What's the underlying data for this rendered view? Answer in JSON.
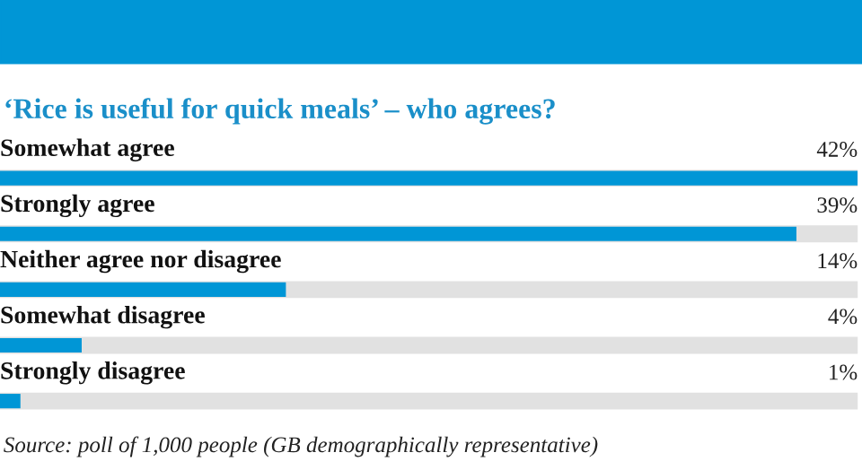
{
  "chart_data": {
    "type": "bar",
    "orientation": "horizontal",
    "title": "‘Rice is useful for quick meals’ – who agrees?",
    "categories": [
      "Somewhat agree",
      "Strongly agree",
      "Neither agree nor disagree",
      "Somewhat disagree",
      "Strongly disagree"
    ],
    "values": [
      42,
      39,
      14,
      4,
      1
    ],
    "value_labels": [
      "42%",
      "39%",
      "14%",
      "4%",
      "1%"
    ],
    "color": "#0096d6",
    "xlim": [
      0,
      42
    ],
    "tick_labels": false,
    "annotations": [
      "Source: poll of 1,000 people (GB demographically representative)"
    ]
  }
}
